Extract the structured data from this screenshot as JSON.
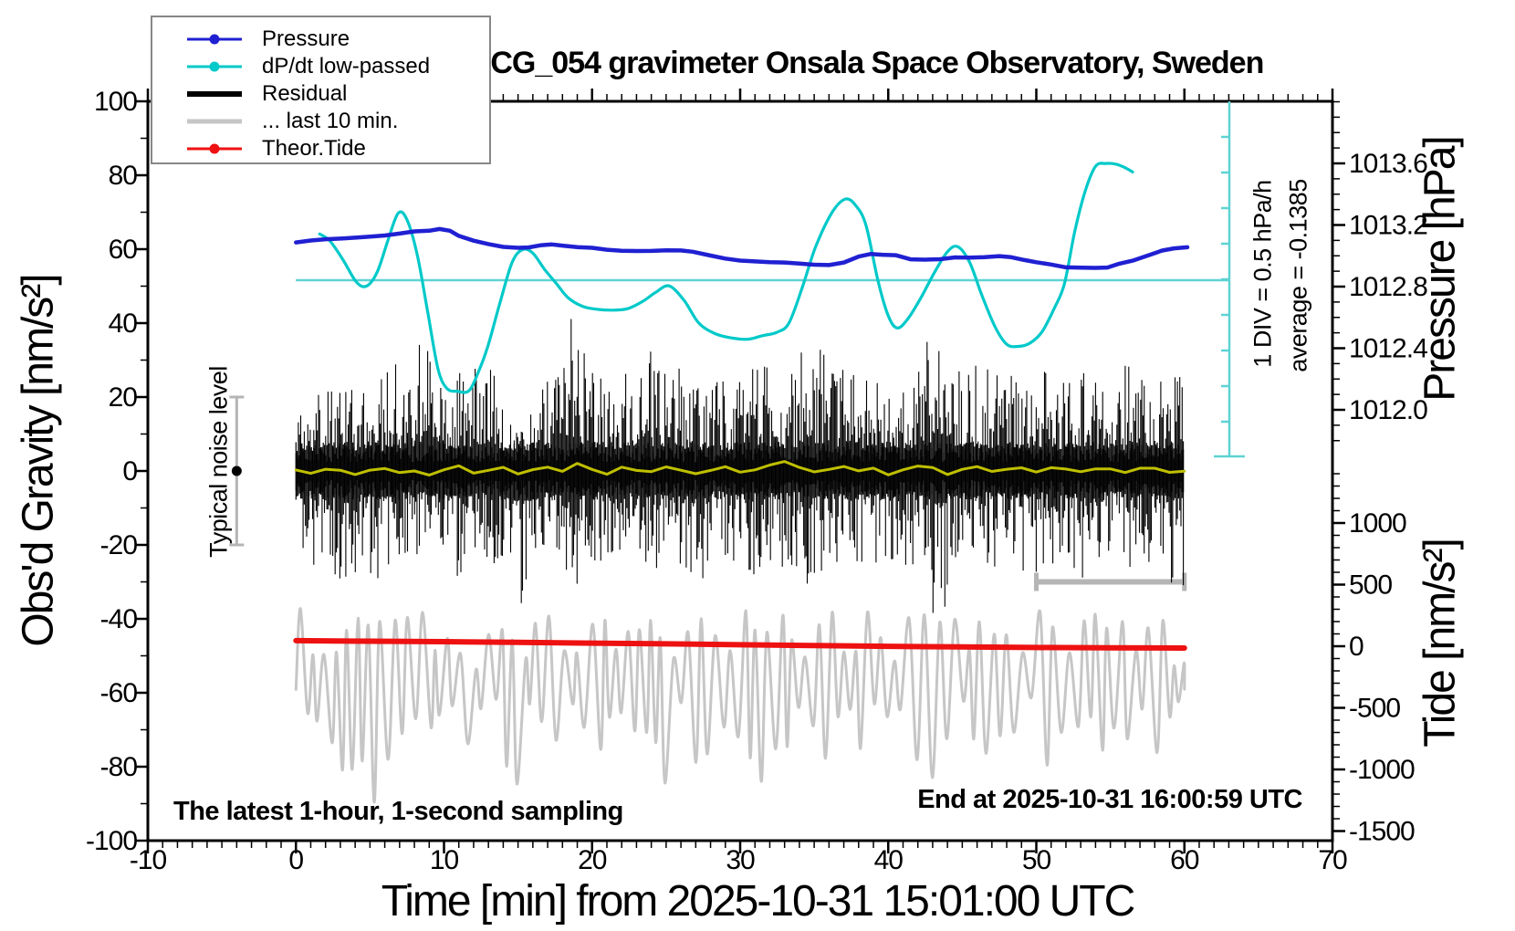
{
  "title": "SCG_054 gravimeter Onsala Space Observatory, Sweden",
  "legend": {
    "items": [
      {
        "label": "Pressure",
        "color": "#2020d2",
        "style": "line-dot"
      },
      {
        "label": "dP/dt low-passed",
        "color": "#00c9c9",
        "style": "line-dot"
      },
      {
        "label": "Residual",
        "color": "#000000",
        "style": "thick-line"
      },
      {
        "label": "... last 10 min.",
        "color": "#c6c6c6",
        "style": "thick-line"
      },
      {
        "label": "Theor.Tide",
        "color": "#ee1111",
        "style": "line-dot"
      }
    ]
  },
  "annotations": {
    "div_scale": "1 DIV = 0.5 hPa/h",
    "average": "average = -0.1385",
    "noise": "Typical noise level",
    "sampling": "The latest 1-hour, 1-second sampling",
    "end_time": "End at 2025-10-31 16:00:59 UTC"
  },
  "axes": {
    "x": {
      "label": "Time [min] from 2025-10-31 15:01:00 UTC",
      "ticks": [
        -10,
        0,
        10,
        20,
        30,
        40,
        50,
        60,
        70
      ],
      "minor_step": 1,
      "range": [
        -10,
        70
      ]
    },
    "gravity": {
      "label": "Obs'd Gravity [nm/s²]",
      "ticks": [
        100,
        80,
        60,
        40,
        20,
        0,
        -20,
        -40,
        -60,
        -80,
        -100
      ],
      "minor_step": 10,
      "range": [
        -100,
        100
      ]
    },
    "pressure": {
      "label": "Pressure [hPa]",
      "ticks": [
        1013.6,
        1013.2,
        1012.8,
        1012.4,
        1012.0
      ],
      "tick_labels": [
        "1013.6",
        "1013.2",
        "1012.8",
        "1012.4",
        "1012.0"
      ],
      "minor_step": 0.1,
      "minor_range": [
        1011.8,
        1014.0
      ]
    },
    "tide": {
      "label": "Tide [nm/s²]",
      "ticks": [
        1000,
        500,
        0,
        -500,
        -1000,
        -1500
      ],
      "tick_labels": [
        "1000",
        "500",
        "0",
        "-500",
        "-1000",
        "-1500"
      ],
      "minor_step": 100,
      "minor_range": [
        -1500,
        1400
      ]
    }
  },
  "colors": {
    "pressure": "#2020d2",
    "dpdt": "#00c9c9",
    "dpdt_ref": "#5fd3d3",
    "residual": "#000000",
    "last10": "#c6c6c6",
    "tide": "#ee1111",
    "yellow": "#bfbf00",
    "frame": "#000000",
    "widget_gray": "#b5b5b5"
  },
  "chart_data": {
    "type": "line",
    "title": "SCG_054 gravimeter Onsala Space Observatory, Sweden",
    "xlabel": "Time [min] from 2025-10-31 15:01:00 UTC",
    "x_range_min": [
      -10,
      70
    ],
    "left_axis": {
      "label": "Obs'd Gravity [nm/s²]",
      "range": [
        -100,
        100
      ]
    },
    "right_axis_pressure": {
      "label": "Pressure [hPa]",
      "annotated": [
        1012.0,
        1013.6
      ]
    },
    "right_axis_tide": {
      "label": "Tide [nm/s²]",
      "annotated": [
        -1500,
        1000
      ]
    },
    "dpdt_scale_note": "1 DIV = 0.5 hPa/h",
    "dpdt_average_hpa_per_h": -0.1385,
    "noise_bar": {
      "center_nm_s2": 0,
      "half_range_nm_s2": 20,
      "x_min": -7
    },
    "last10_marker_bar": {
      "t_start": 50,
      "t_end": 60,
      "gravity_level": -30
    },
    "series": [
      {
        "name": "Pressure",
        "axis": "pressure",
        "units": "hPa",
        "points": [
          [
            0,
            1013.09
          ],
          [
            1,
            1013.1
          ],
          [
            2,
            1013.11
          ],
          [
            3,
            1013.115
          ],
          [
            4,
            1013.12
          ],
          [
            5,
            1013.125
          ],
          [
            6,
            1013.13
          ],
          [
            7,
            1013.14
          ],
          [
            8,
            1013.155
          ],
          [
            9,
            1013.165
          ],
          [
            9.7,
            1013.17
          ],
          [
            10.4,
            1013.16
          ],
          [
            11,
            1013.13
          ],
          [
            12,
            1013.1
          ],
          [
            13,
            1013.08
          ],
          [
            14,
            1013.06
          ],
          [
            15,
            1013.05
          ],
          [
            15.7,
            1013.05
          ],
          [
            16.5,
            1013.07
          ],
          [
            17.3,
            1013.075
          ],
          [
            18,
            1013.07
          ],
          [
            19,
            1013.055
          ],
          [
            20,
            1013.05
          ],
          [
            21,
            1013.04
          ],
          [
            22,
            1013.035
          ],
          [
            23,
            1013.03
          ],
          [
            24,
            1013.035
          ],
          [
            25,
            1013.04
          ],
          [
            26,
            1013.035
          ],
          [
            26.8,
            1013.03
          ],
          [
            28,
            1013.0
          ],
          [
            29,
            1012.98
          ],
          [
            30,
            1012.965
          ],
          [
            31,
            1012.96
          ],
          [
            32,
            1012.96
          ],
          [
            33,
            1012.955
          ],
          [
            34,
            1012.95
          ],
          [
            35,
            1012.945
          ],
          [
            36,
            1012.94
          ],
          [
            37,
            1012.96
          ],
          [
            38,
            1012.995
          ],
          [
            38.8,
            1013.01
          ],
          [
            39.6,
            1013.01
          ],
          [
            40.5,
            1013.0
          ],
          [
            41.5,
            1012.98
          ],
          [
            42.5,
            1012.975
          ],
          [
            43.5,
            1012.98
          ],
          [
            44.5,
            1012.985
          ],
          [
            45.5,
            1012.99
          ],
          [
            46.5,
            1012.995
          ],
          [
            47.5,
            1013.0
          ],
          [
            48.3,
            1012.99
          ],
          [
            49.2,
            1012.97
          ],
          [
            50,
            1012.96
          ],
          [
            51,
            1012.945
          ],
          [
            52,
            1012.93
          ],
          [
            53,
            1012.925
          ],
          [
            54,
            1012.92
          ],
          [
            54.8,
            1012.925
          ],
          [
            55.6,
            1012.95
          ],
          [
            56.5,
            1012.97
          ],
          [
            57.5,
            1013.0
          ],
          [
            58.5,
            1013.03
          ],
          [
            59.3,
            1013.045
          ],
          [
            60.2,
            1013.06
          ]
        ]
      },
      {
        "name": "dP/dt low-passed",
        "axis": "dpdt",
        "units": "hPa/h",
        "points": [
          [
            1.6,
            0.65
          ],
          [
            2.3,
            0.55
          ],
          [
            3.2,
            0.28
          ],
          [
            4.1,
            -0.03
          ],
          [
            4.8,
            -0.08
          ],
          [
            5.5,
            0.12
          ],
          [
            6.2,
            0.55
          ],
          [
            6.9,
            0.94
          ],
          [
            7.5,
            0.85
          ],
          [
            8.2,
            0.35
          ],
          [
            8.9,
            -0.45
          ],
          [
            9.6,
            -1.25
          ],
          [
            10.2,
            -1.52
          ],
          [
            10.9,
            -1.56
          ],
          [
            11.7,
            -1.55
          ],
          [
            12.4,
            -1.25
          ],
          [
            13,
            -0.9
          ],
          [
            13.8,
            -0.3
          ],
          [
            14.6,
            0.25
          ],
          [
            15.3,
            0.43
          ],
          [
            16,
            0.38
          ],
          [
            16.8,
            0.15
          ],
          [
            17.6,
            -0.05
          ],
          [
            18.4,
            -0.25
          ],
          [
            19.4,
            -0.37
          ],
          [
            20.4,
            -0.41
          ],
          [
            21.4,
            -0.42
          ],
          [
            22.4,
            -0.4
          ],
          [
            23.4,
            -0.3
          ],
          [
            24.3,
            -0.17
          ],
          [
            25.2,
            -0.08
          ],
          [
            26.2,
            -0.28
          ],
          [
            27.2,
            -0.6
          ],
          [
            28.3,
            -0.75
          ],
          [
            29.4,
            -0.81
          ],
          [
            30.5,
            -0.83
          ],
          [
            31.5,
            -0.78
          ],
          [
            32.5,
            -0.73
          ],
          [
            33.3,
            -0.6
          ],
          [
            34.2,
            -0.1
          ],
          [
            35.1,
            0.47
          ],
          [
            36.2,
            0.95
          ],
          [
            37.1,
            1.14
          ],
          [
            37.8,
            1.05
          ],
          [
            38.5,
            0.77
          ],
          [
            39.3,
            0
          ],
          [
            40,
            -0.5
          ],
          [
            40.6,
            -0.67
          ],
          [
            41.3,
            -0.55
          ],
          [
            42.2,
            -0.25
          ],
          [
            43.1,
            0.1
          ],
          [
            44,
            0.4
          ],
          [
            44.7,
            0.47
          ],
          [
            45.5,
            0.25
          ],
          [
            46.3,
            -0.2
          ],
          [
            47.2,
            -0.65
          ],
          [
            48,
            -0.9
          ],
          [
            48.8,
            -0.93
          ],
          [
            49.6,
            -0.88
          ],
          [
            50.4,
            -0.72
          ],
          [
            51.2,
            -0.4
          ],
          [
            51.9,
            -0.05
          ],
          [
            52.6,
            0.69
          ],
          [
            53.3,
            1.25
          ],
          [
            54,
            1.6
          ],
          [
            54.7,
            1.64
          ],
          [
            55.4,
            1.63
          ],
          [
            56,
            1.58
          ],
          [
            56.5,
            1.52
          ]
        ]
      },
      {
        "name": "Theor.Tide",
        "axis": "tide",
        "units": "nm/s2",
        "points": [
          [
            0,
            45
          ],
          [
            5,
            41
          ],
          [
            10,
            37
          ],
          [
            15,
            31
          ],
          [
            20,
            25
          ],
          [
            25,
            19
          ],
          [
            30,
            12
          ],
          [
            35,
            5
          ],
          [
            40,
            -1
          ],
          [
            45,
            -6
          ],
          [
            50,
            -10
          ],
          [
            55,
            -13
          ],
          [
            60,
            -15
          ]
        ]
      }
    ],
    "residual": {
      "name": "Residual",
      "axis": "gravity",
      "units": "nm/s2",
      "sampling": "1-second",
      "per_minute_envelope_hi_lo": [
        [
          20,
          -24
        ],
        [
          22,
          -26
        ],
        [
          26,
          -30
        ],
        [
          27,
          -39
        ],
        [
          24,
          -28
        ],
        [
          25,
          -31
        ],
        [
          30,
          -27
        ],
        [
          28,
          -26
        ],
        [
          35,
          -26
        ],
        [
          30,
          -28
        ],
        [
          27,
          -29
        ],
        [
          28,
          -31
        ],
        [
          30,
          -26
        ],
        [
          28,
          -27
        ],
        [
          25,
          -33
        ],
        [
          24,
          -36
        ],
        [
          27,
          -26
        ],
        [
          28,
          -25
        ],
        [
          42,
          -38
        ],
        [
          33,
          -30
        ],
        [
          28,
          -26
        ],
        [
          26,
          -25
        ],
        [
          30,
          -27
        ],
        [
          38,
          -28
        ],
        [
          30,
          -29
        ],
        [
          28,
          -30
        ],
        [
          27,
          -31
        ],
        [
          26,
          -33
        ],
        [
          26,
          -25
        ],
        [
          25,
          -26
        ],
        [
          28,
          -28
        ],
        [
          29,
          -26
        ],
        [
          30,
          -27
        ],
        [
          28,
          -26
        ],
        [
          35,
          -33
        ],
        [
          34,
          -30
        ],
        [
          30,
          -28
        ],
        [
          28,
          -26
        ],
        [
          27,
          -26
        ],
        [
          28,
          -28
        ],
        [
          29,
          -27
        ],
        [
          28,
          -26
        ],
        [
          35,
          -30
        ],
        [
          43,
          -39
        ],
        [
          31,
          -28
        ],
        [
          29,
          -27
        ],
        [
          28,
          -26
        ],
        [
          27,
          -26
        ],
        [
          26,
          -27
        ],
        [
          26,
          -28
        ],
        [
          28,
          -26
        ],
        [
          27,
          -27
        ],
        [
          29,
          -28
        ],
        [
          30,
          -29
        ],
        [
          27,
          -26
        ],
        [
          26,
          -25
        ],
        [
          29,
          -27
        ],
        [
          30,
          -28
        ],
        [
          28,
          -30
        ],
        [
          27,
          -33
        ]
      ]
    },
    "residual_lowpass_yellow": {
      "axis": "gravity",
      "units": "nm/s2",
      "t_step": 1,
      "values": [
        0.5,
        -0.3,
        0.8,
        0.2,
        -0.6,
        0.4,
        1.0,
        -0.2,
        0.3,
        -0.8,
        0.5,
        1.2,
        -0.4,
        0.2,
        0.9,
        -0.5,
        0.1,
        0.7,
        -0.3,
        2.0,
        0.4,
        -0.6,
        0.8,
        0.3,
        -0.4,
        1.1,
        0.2,
        -0.7,
        0.5,
        0.9,
        -0.2,
        0.6,
        1.4,
        2.3,
        0.7,
        -0.5,
        0.3,
        1.0,
        -0.3,
        0.6,
        -0.8,
        0.4,
        1.2,
        0.8,
        -0.6,
        0.2,
        0.9,
        -0.4,
        0.5,
        1.1,
        -0.2,
        0.7,
        0.3,
        -0.5,
        0.8,
        0.4,
        -0.3,
        1.0,
        0.5,
        -0.6,
        0.2
      ]
    },
    "last10": {
      "name": "... last 10 min.",
      "axis": "tide",
      "units": "nm/s2",
      "per_minute_envelope_hi_lo": [
        [
          350,
          -950
        ],
        [
          -100,
          -900
        ],
        [
          -50,
          -870
        ],
        [
          200,
          -1050
        ],
        [
          320,
          -1150
        ],
        [
          350,
          -1280
        ],
        [
          260,
          -980
        ],
        [
          300,
          -820
        ],
        [
          310,
          -920
        ],
        [
          -50,
          -860
        ],
        [
          120,
          -700
        ],
        [
          -80,
          -820
        ],
        [
          -220,
          -760
        ],
        [
          130,
          -640
        ],
        [
          60,
          -1320
        ],
        [
          -150,
          -900
        ],
        [
          200,
          -780
        ],
        [
          310,
          -860
        ],
        [
          -60,
          -740
        ],
        [
          140,
          -960
        ],
        [
          330,
          -1060
        ],
        [
          -40,
          -700
        ],
        [
          180,
          -820
        ],
        [
          240,
          -900
        ],
        [
          90,
          -1240
        ],
        [
          -120,
          -860
        ],
        [
          200,
          -760
        ],
        [
          300,
          -1160
        ],
        [
          130,
          -880
        ],
        [
          -60,
          -780
        ],
        [
          340,
          -1020
        ],
        [
          160,
          -1340
        ],
        [
          280,
          -900
        ],
        [
          60,
          -820
        ],
        [
          -100,
          -760
        ],
        [
          320,
          -1060
        ],
        [
          280,
          -840
        ],
        [
          -80,
          -720
        ],
        [
          300,
          -880
        ],
        [
          120,
          -780
        ],
        [
          -140,
          -700
        ],
        [
          340,
          -980
        ],
        [
          300,
          -1120
        ],
        [
          200,
          -820
        ],
        [
          320,
          -760
        ],
        [
          -60,
          -880
        ],
        [
          220,
          -1020
        ],
        [
          140,
          -740
        ],
        [
          300,
          -960
        ],
        [
          -100,
          -800
        ],
        [
          320,
          -1080
        ],
        [
          240,
          -1280
        ],
        [
          -80,
          -860
        ],
        [
          300,
          -760
        ],
        [
          180,
          -940
        ],
        [
          340,
          -1180
        ],
        [
          -60,
          -800
        ],
        [
          260,
          -880
        ],
        [
          300,
          -1020
        ],
        [
          -200,
          -620
        ]
      ]
    }
  }
}
